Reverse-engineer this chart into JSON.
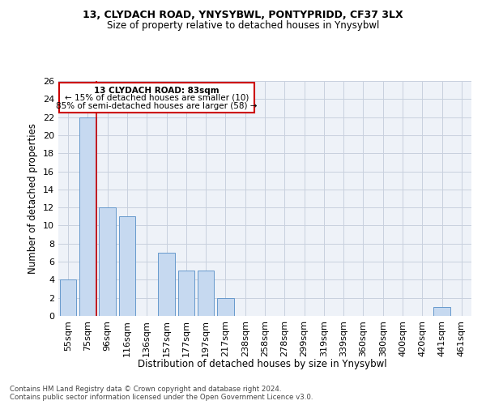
{
  "title1": "13, CLYDACH ROAD, YNYSYBWL, PONTYPRIDD, CF37 3LX",
  "title2": "Size of property relative to detached houses in Ynysybwl",
  "xlabel": "Distribution of detached houses by size in Ynysybwl",
  "ylabel": "Number of detached properties",
  "categories": [
    "55sqm",
    "75sqm",
    "96sqm",
    "116sqm",
    "136sqm",
    "157sqm",
    "177sqm",
    "197sqm",
    "217sqm",
    "238sqm",
    "258sqm",
    "278sqm",
    "299sqm",
    "319sqm",
    "339sqm",
    "360sqm",
    "380sqm",
    "400sqm",
    "420sqm",
    "441sqm",
    "461sqm"
  ],
  "values": [
    4,
    22,
    12,
    11,
    0,
    7,
    5,
    5,
    2,
    0,
    0,
    0,
    0,
    0,
    0,
    0,
    0,
    0,
    0,
    1,
    0
  ],
  "bar_color": "#c6d9f0",
  "bar_edge_color": "#6699cc",
  "vline_color": "#cc0000",
  "ylim": [
    0,
    26
  ],
  "yticks": [
    0,
    2,
    4,
    6,
    8,
    10,
    12,
    14,
    16,
    18,
    20,
    22,
    24,
    26
  ],
  "annotation_title": "13 CLYDACH ROAD: 83sqm",
  "annotation_line1": "← 15% of detached houses are smaller (10)",
  "annotation_line2": "85% of semi-detached houses are larger (58) →",
  "annotation_box_color": "#cc0000",
  "footer_line1": "Contains HM Land Registry data © Crown copyright and database right 2024.",
  "footer_line2": "Contains public sector information licensed under the Open Government Licence v3.0.",
  "background_color": "#eef2f8",
  "grid_color": "#c8d0de"
}
